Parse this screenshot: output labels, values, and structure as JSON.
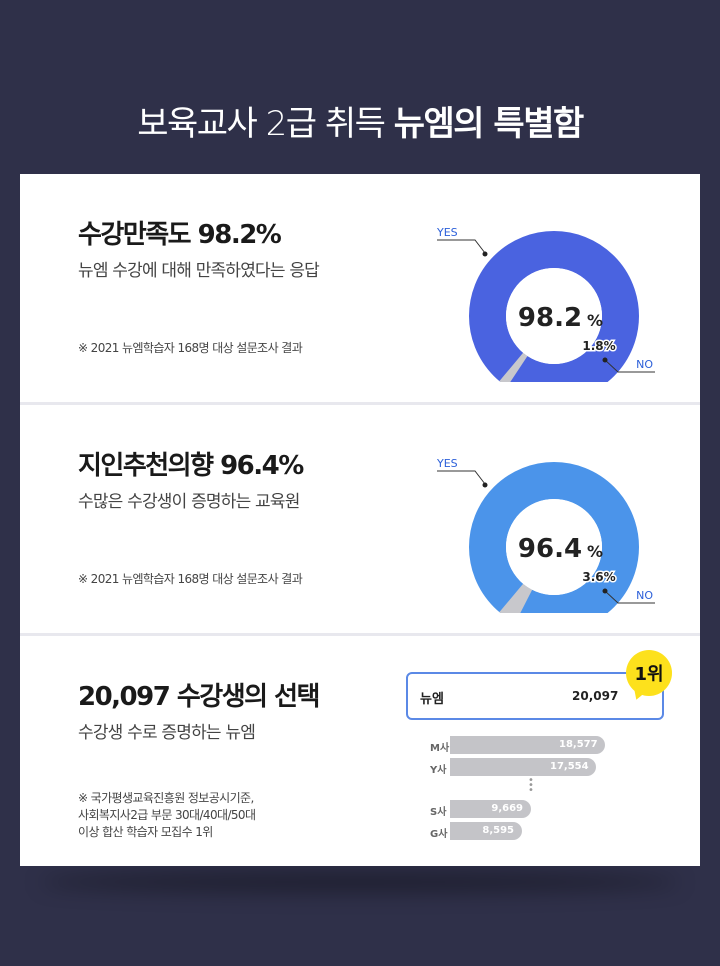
{
  "header": {
    "title_light": "보육교사 2급 취득",
    "title_bold": "뉴엠의 특별함"
  },
  "cards": [
    {
      "title": "수강만족도 98.2%",
      "subtitle": "뉴엠 수강에 대해 만족하였다는 응답",
      "note": "※ 2021 뉴엠학습자 168명 대상 설문조사 결과",
      "donut": {
        "center_value": "98.2",
        "center_unit": "%",
        "yes_label": "YES",
        "no_label": "NO",
        "no_value": "1.8%",
        "yes_fraction": 0.982,
        "color": "#4a63e0",
        "no_color": "#c8c8cc"
      }
    },
    {
      "title": "지인추천의향 96.4%",
      "subtitle": "수많은 수강생이 증명하는 교육원",
      "note": "※ 2021 뉴엠학습자 168명 대상 설문조사 결과",
      "donut": {
        "center_value": "96.4",
        "center_unit": "%",
        "yes_label": "YES",
        "no_label": "NO",
        "no_value": "3.6%",
        "yes_fraction": 0.964,
        "color": "#4b94ea",
        "no_color": "#c8c8cc"
      }
    },
    {
      "title": "20,097 수강생의 선택",
      "subtitle": "수강생 수로 증명하는 뉴엠",
      "note_lines": [
        "※ 국가평생교육진흥원 정보공시기준,",
        "사회복지사2급 부문 30대/40대/50대",
        "이상 합산 학습자 모집수 1위"
      ],
      "ranking": {
        "badge": "1위",
        "top": {
          "name": "뉴엠",
          "value": "20,097"
        },
        "others": [
          {
            "name": "M사",
            "value": "18,577",
            "amount": 18577
          },
          {
            "name": "Y사",
            "value": "17,554",
            "amount": 17554
          },
          {
            "name": "S사",
            "value": "9,669",
            "amount": 9669
          },
          {
            "name": "G사",
            "value": "8,595",
            "amount": 8595
          }
        ],
        "bar_color": "#c4c4c8",
        "box_color": "#5b89e6"
      }
    }
  ]
}
